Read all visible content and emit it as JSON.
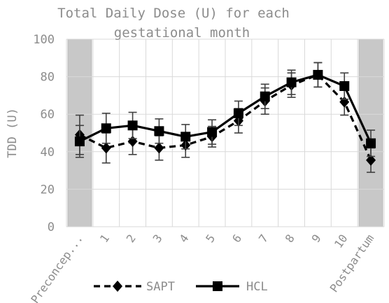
{
  "chart_data": {
    "type": "line",
    "title_lines": [
      "Total Daily Dose (U) for each",
      "gestational month"
    ],
    "ylabel": "TDD (U)",
    "xlabel": "",
    "ylim": [
      0,
      100
    ],
    "yticks": [
      0,
      20,
      40,
      60,
      80,
      100
    ],
    "grid": true,
    "legend_position": "bottom",
    "shaded_categories": [
      "Preconcep...",
      "Postpartum"
    ],
    "categories": [
      "Preconcep...",
      "1",
      "2",
      "3",
      "4",
      "5",
      "6",
      "7",
      "8",
      "9",
      "10",
      "Postpartum"
    ],
    "series": [
      {
        "name": "SAPT",
        "marker": "diamond",
        "line_style": "dashed",
        "color": "#000000",
        "values": [
          49,
          42,
          45.5,
          42,
          43.5,
          48,
          56.5,
          67,
          75.5,
          81,
          66.5,
          35.5
        ],
        "error": [
          10.5,
          8,
          7,
          6.5,
          6.5,
          5.5,
          6.5,
          7,
          6.5,
          6.5,
          7,
          6.5
        ]
      },
      {
        "name": "HCL",
        "marker": "square",
        "line_style": "solid",
        "color": "#000000",
        "values": [
          45.5,
          52.5,
          54,
          51,
          48,
          50.5,
          60.5,
          69.5,
          77,
          81,
          75,
          44.5
        ],
        "error": [
          8.5,
          8,
          7,
          6.5,
          6.5,
          6.5,
          6.5,
          6.5,
          6.5,
          6.5,
          7,
          7
        ]
      }
    ]
  },
  "colors": {
    "shade": "#c8c8c8",
    "grid": "#d9d9d9",
    "text": "#8c8c8c",
    "line": "#000000",
    "error_bar": "#404040"
  }
}
